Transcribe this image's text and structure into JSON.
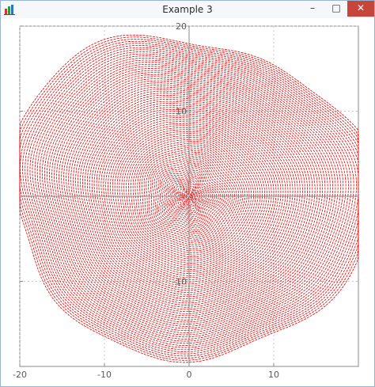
{
  "window": {
    "title": "Example 3",
    "app_icon": "bar-chart-icon",
    "controls": {
      "minimize": "–",
      "maximize": "□",
      "close": "✕"
    }
  },
  "colors": {
    "curve": "#e00000",
    "axis": "#888888",
    "grid": "#c8c8c8",
    "titlebar": "#f5f7fa",
    "close_button": "#c7463b"
  },
  "chart_data": {
    "type": "line",
    "title": "",
    "xlabel": "",
    "ylabel": "",
    "xlim": [
      -20,
      20
    ],
    "ylim": [
      -20,
      20
    ],
    "grid": true,
    "x_ticks": [
      -20,
      -10,
      0,
      10
    ],
    "y_ticks": [
      20,
      10,
      0,
      -10
    ],
    "x_tick_labels": [
      "-20",
      "-10",
      "0",
      "10"
    ],
    "y_tick_labels": [
      "20",
      "10",
      "",
      "-10"
    ],
    "series": [
      {
        "description": "family of closed contour curves centred at the origin",
        "color": "#e00000",
        "r_min": 0.3,
        "r_max": 20,
        "count": 80,
        "lobes": 5
      }
    ]
  }
}
